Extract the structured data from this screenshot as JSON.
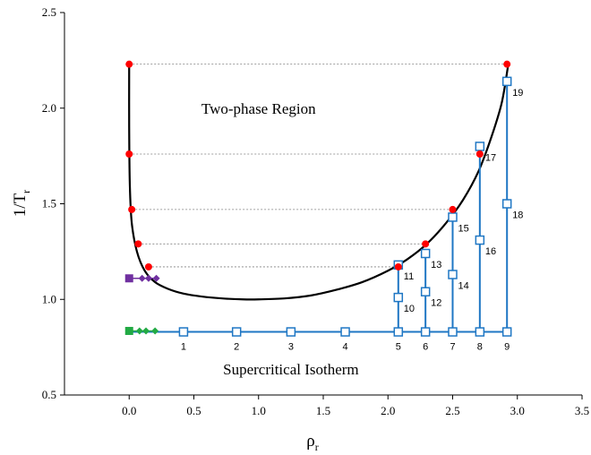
{
  "chart_data": {
    "type": "scatter",
    "xlabel": "ρ",
    "xlabel_sub": "r",
    "ylabel": "1/T",
    "ylabel_sub": "r",
    "xlim": [
      -0.5,
      3.5
    ],
    "ylim": [
      0.5,
      2.5
    ],
    "x_ticks": [
      0.0,
      0.5,
      1.0,
      1.5,
      2.0,
      2.5,
      3.0,
      3.5
    ],
    "x_tick_labels": [
      "0.0",
      "0.5",
      "1.0",
      "1.5",
      "2.0",
      "2.5",
      "3.0",
      "3.5"
    ],
    "y_ticks": [
      0.5,
      1.0,
      1.5,
      2.0,
      2.5
    ],
    "y_tick_labels": [
      "0.5",
      "1.0",
      "1.5",
      "2.0",
      "2.5"
    ],
    "grid": false,
    "legend": "none",
    "annotations": [
      "Two-phase Region",
      "Supercritical Isotherm"
    ],
    "annotation_positions": [
      [
        1.0,
        2.0
      ],
      [
        1.25,
        0.635
      ]
    ],
    "colors": {
      "boundary": "#000000",
      "coexistence_points": "#ff0000",
      "path": "#1f77c4",
      "tie_line": "#808080",
      "start_green": "#22aa44",
      "start_purple": "#7030a0"
    },
    "series": [
      {
        "role": "phase_boundary",
        "x": [
          0.0,
          0.0,
          0.005,
          0.02,
          0.06,
          0.12,
          0.2,
          0.3,
          0.42,
          0.56,
          0.72,
          0.88,
          1.0,
          1.2,
          1.4,
          1.6,
          1.8,
          2.0,
          2.15,
          2.3,
          2.45,
          2.58,
          2.7,
          2.8,
          2.88,
          2.93
        ],
        "y": [
          2.23,
          1.9,
          1.6,
          1.4,
          1.25,
          1.15,
          1.09,
          1.055,
          1.03,
          1.015,
          1.005,
          1.0,
          1.0,
          1.005,
          1.02,
          1.05,
          1.09,
          1.15,
          1.21,
          1.29,
          1.4,
          1.52,
          1.67,
          1.85,
          2.03,
          2.23
        ]
      },
      {
        "role": "coexistence_points",
        "x": [
          0.0,
          0.0,
          0.02,
          0.07,
          0.15,
          2.08,
          2.29,
          2.5,
          2.71,
          2.92
        ],
        "y": [
          2.23,
          1.76,
          1.47,
          1.29,
          1.17,
          1.17,
          1.29,
          1.47,
          1.76,
          2.23
        ]
      },
      {
        "role": "tie_lines",
        "x_start": [
          0.0,
          0.0,
          0.02,
          0.07,
          0.15
        ],
        "x_end": [
          2.92,
          2.71,
          2.5,
          2.29,
          2.08
        ],
        "y": [
          2.23,
          1.76,
          1.47,
          1.29,
          1.17
        ]
      },
      {
        "role": "isotherm_path",
        "x": [
          0.0,
          2.92
        ],
        "y": [
          0.83,
          0.83
        ]
      },
      {
        "role": "path_points",
        "labels": [
          "1",
          "2",
          "3",
          "4",
          "5",
          "6",
          "7",
          "8",
          "9",
          "10",
          "11",
          "12",
          "13",
          "14",
          "15",
          "16",
          "17",
          "18",
          "19"
        ],
        "x": [
          0.42,
          0.83,
          1.25,
          1.67,
          2.08,
          2.29,
          2.5,
          2.71,
          2.92,
          2.08,
          2.08,
          2.29,
          2.29,
          2.5,
          2.5,
          2.71,
          2.71,
          2.92,
          2.92
        ],
        "y": [
          0.83,
          0.83,
          0.83,
          0.83,
          0.83,
          0.83,
          0.83,
          0.83,
          0.83,
          1.01,
          1.18,
          1.04,
          1.24,
          1.13,
          1.43,
          1.31,
          1.8,
          1.5,
          2.14
        ]
      },
      {
        "role": "start_green",
        "x": [
          0.0,
          0.08,
          0.13,
          0.2
        ],
        "y": [
          0.835,
          0.835,
          0.835,
          0.835
        ]
      },
      {
        "role": "start_purple",
        "x": [
          0.0,
          0.1,
          0.15,
          0.21
        ],
        "y": [
          1.11,
          1.11,
          1.11,
          1.11
        ]
      }
    ]
  }
}
